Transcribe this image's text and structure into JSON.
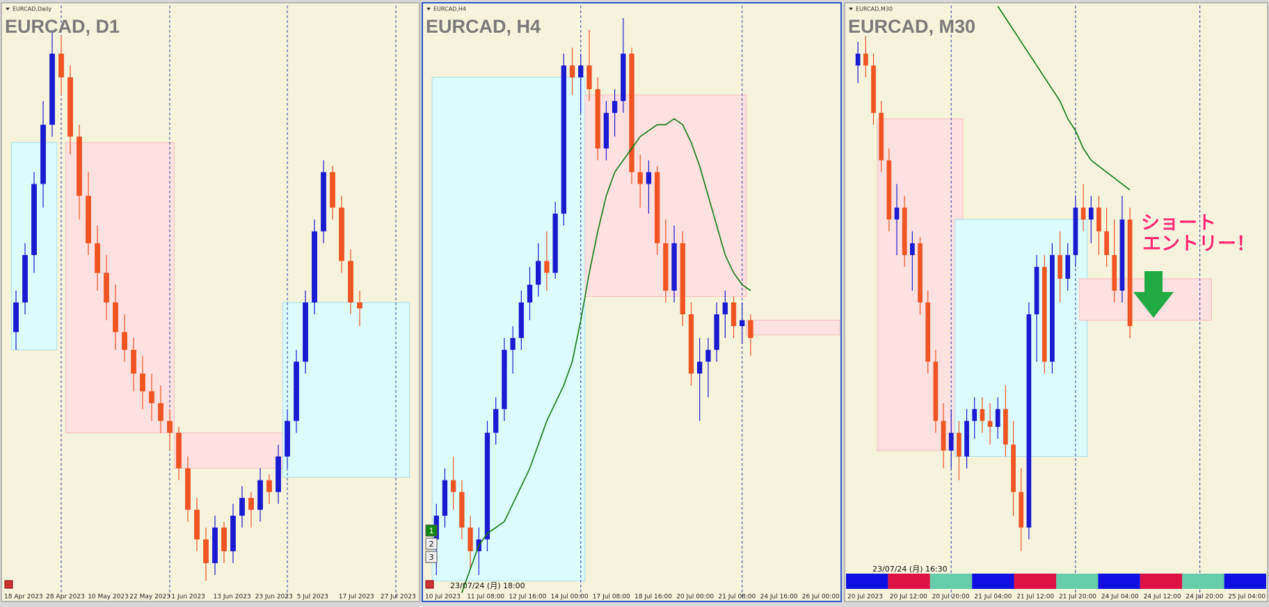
{
  "panels": [
    {
      "label": "EURCAD,Daily",
      "title": "EURCAD, D1",
      "xlim": [
        -1,
        44
      ],
      "ylim": [
        0,
        100
      ],
      "x_labels": [
        "18 Apr 2023",
        "28 Apr 2023",
        "10 May 2023",
        "22 May 2023",
        "1 Jun 2023",
        "13 Jun 2023",
        "23 Jun 2023",
        "5 Jul 2023",
        "17 Jul 2023",
        "27 Jul 2023"
      ],
      "vlines": [
        5,
        17,
        30,
        42
      ],
      "zones": [
        {
          "start": 0,
          "end": 4,
          "top": 77,
          "bottom": 42,
          "color": "#dcfcfc"
        },
        {
          "start": 6,
          "end": 17,
          "top": 77,
          "bottom": 28,
          "color": "#fde0e0"
        },
        {
          "start": 18,
          "end": 29,
          "top": 28,
          "bottom": 22,
          "color": "#fde0e0"
        },
        {
          "start": 30,
          "end": 43,
          "top": 50,
          "bottom": 20.5,
          "color": "#dcfcfc"
        }
      ],
      "candles": [
        [
          45,
          52,
          42,
          50
        ],
        [
          50,
          60,
          48,
          58
        ],
        [
          58,
          72,
          55,
          70
        ],
        [
          70,
          84,
          66,
          80
        ],
        [
          80,
          96,
          78,
          92
        ],
        [
          92,
          95,
          85,
          88
        ],
        [
          88,
          90,
          75,
          78
        ],
        [
          78,
          80,
          64,
          68
        ],
        [
          68,
          72,
          58,
          60
        ],
        [
          60,
          63,
          52,
          55
        ],
        [
          55,
          58,
          47,
          50
        ],
        [
          50,
          53,
          42,
          45
        ],
        [
          45,
          48,
          40,
          42
        ],
        [
          42,
          44,
          35,
          38
        ],
        [
          38,
          41,
          32,
          35
        ],
        [
          35,
          38,
          30,
          33
        ],
        [
          33,
          36,
          28,
          30
        ],
        [
          30,
          32,
          25,
          28
        ],
        [
          28,
          29,
          20,
          22
        ],
        [
          22,
          24,
          13,
          15
        ],
        [
          15,
          17,
          8,
          10
        ],
        [
          10,
          12,
          3,
          6
        ],
        [
          6,
          14,
          4,
          12
        ],
        [
          12,
          13,
          6,
          8
        ],
        [
          8,
          16,
          6,
          14
        ],
        [
          14,
          19,
          12,
          17
        ],
        [
          17,
          18,
          12,
          15
        ],
        [
          15,
          22,
          13,
          20
        ],
        [
          20,
          21,
          16,
          18
        ],
        [
          18,
          26,
          16,
          24
        ],
        [
          24,
          32,
          22,
          30
        ],
        [
          30,
          42,
          28,
          40
        ],
        [
          40,
          52,
          38,
          50
        ],
        [
          50,
          64,
          48,
          62
        ],
        [
          62,
          74,
          60,
          72
        ],
        [
          72,
          73,
          64,
          66
        ],
        [
          66,
          68,
          55,
          57
        ],
        [
          57,
          59,
          48,
          50
        ],
        [
          50,
          52,
          46,
          49
        ]
      ]
    },
    {
      "label": "EURCAD,H4",
      "title": "EURCAD, H4",
      "xlim": [
        -1,
        47
      ],
      "ylim": [
        0,
        100
      ],
      "x_labels": [
        "10 Jul 2023",
        "11 Jul 08:00",
        "12 Jul 16:00",
        "14 Jul 00:00",
        "17 Jul 08:00",
        "18 Jul 16:00",
        "20 Jul 00:00",
        "21 Jul 08:00",
        "24 Jul 16:00",
        "26 Jul 00:00"
      ],
      "vlines": [
        17,
        36
      ],
      "time": "23/07/24 (月) 18:00",
      "buttons": [
        "1",
        "2",
        "3"
      ],
      "zones": [
        {
          "start": 0,
          "end": 17,
          "top": 88,
          "bottom": 3,
          "color": "#dcfcfc"
        },
        {
          "start": 18,
          "end": 36,
          "top": 85,
          "bottom": 51,
          "color": "#fde0e0"
        },
        {
          "start": 37,
          "end": 47,
          "top": 47,
          "bottom": 44.5,
          "color": "#fde0e0"
        }
      ],
      "candles": [
        [
          10,
          16,
          4,
          14
        ],
        [
          14,
          22,
          12,
          20
        ],
        [
          20,
          24,
          15,
          18
        ],
        [
          18,
          20,
          10,
          12
        ],
        [
          12,
          14,
          5,
          8
        ],
        [
          8,
          12,
          4,
          10
        ],
        [
          10,
          30,
          8,
          28
        ],
        [
          28,
          34,
          26,
          32
        ],
        [
          32,
          44,
          30,
          42
        ],
        [
          42,
          46,
          38,
          44
        ],
        [
          44,
          52,
          42,
          50
        ],
        [
          50,
          56,
          47,
          53
        ],
        [
          53,
          60,
          51,
          57
        ],
        [
          57,
          62,
          52,
          55
        ],
        [
          55,
          67,
          54,
          65
        ],
        [
          65,
          92,
          63,
          90
        ],
        [
          90,
          93,
          85,
          88
        ],
        [
          88,
          92,
          82,
          90
        ],
        [
          90,
          96,
          84,
          86
        ],
        [
          86,
          88,
          74,
          76
        ],
        [
          76,
          84,
          74,
          82
        ],
        [
          82,
          86,
          78,
          84
        ],
        [
          84,
          98,
          82,
          92
        ],
        [
          92,
          93,
          70,
          72
        ],
        [
          72,
          75,
          66,
          70
        ],
        [
          70,
          74,
          65,
          72
        ],
        [
          72,
          73,
          58,
          60
        ],
        [
          60,
          64,
          50,
          52
        ],
        [
          52,
          63,
          50,
          60
        ],
        [
          60,
          62,
          46,
          48
        ],
        [
          48,
          50,
          36,
          38
        ],
        [
          38,
          44,
          30,
          40
        ],
        [
          40,
          44,
          34,
          42
        ],
        [
          42,
          50,
          40,
          48
        ],
        [
          48,
          52,
          44,
          50
        ],
        [
          50,
          51,
          44,
          46
        ],
        [
          46,
          50,
          43,
          47
        ],
        [
          47,
          48,
          41,
          44
        ]
      ],
      "ma": [
        null,
        null,
        null,
        1,
        5,
        9,
        11,
        12,
        13,
        16,
        19,
        22,
        26,
        30,
        33,
        36,
        40,
        47,
        55,
        62,
        68,
        72,
        74,
        76,
        78,
        79,
        80,
        80,
        81,
        80,
        77,
        73,
        68,
        63,
        58,
        55,
        53,
        52
      ]
    },
    {
      "label": "EURCAD,M30",
      "title": "EURCAD, M30",
      "xlim": [
        -1,
        52
      ],
      "ylim": [
        0,
        100
      ],
      "x_labels": [
        "20 Jul 2023",
        "20 Jul 12:00",
        "20 Jul 20:00",
        "21 Jul 04:00",
        "21 Jul 12:00",
        "21 Jul 20:00",
        "24 Jul 04:00",
        "24 Jul 12:00",
        "24 Jul 20:00",
        "25 Jul 04:00"
      ],
      "vlines": [
        12,
        28,
        44
      ],
      "time": "23/07/24 (月) 16:30",
      "annotation": [
        "ショート",
        "エントリー！"
      ],
      "zones": [
        {
          "start": 3,
          "end": 13,
          "top": 81,
          "bottom": 25,
          "color": "#fde0e0"
        },
        {
          "start": 13,
          "end": 29,
          "top": 64,
          "bottom": 24,
          "color": "#dcfcfc"
        },
        {
          "start": 29,
          "end": 45,
          "top": 54,
          "bottom": 47,
          "color": "#fde0e0"
        }
      ],
      "candles": [
        [
          90,
          94,
          87,
          92
        ],
        [
          92,
          95,
          88,
          90
        ],
        [
          90,
          92,
          80,
          82
        ],
        [
          82,
          84,
          72,
          74
        ],
        [
          74,
          76,
          62,
          64
        ],
        [
          64,
          70,
          58,
          66
        ],
        [
          66,
          68,
          56,
          58
        ],
        [
          58,
          62,
          52,
          60
        ],
        [
          60,
          61,
          48,
          50
        ],
        [
          50,
          52,
          38,
          40
        ],
        [
          40,
          42,
          28,
          30
        ],
        [
          30,
          33,
          22,
          25
        ],
        [
          25,
          32,
          22,
          28
        ],
        [
          28,
          30,
          20,
          24
        ],
        [
          24,
          32,
          22,
          30
        ],
        [
          30,
          34,
          27,
          32
        ],
        [
          32,
          34,
          28,
          30
        ],
        [
          30,
          33,
          26,
          29
        ],
        [
          29,
          34,
          27,
          32
        ],
        [
          32,
          36,
          24,
          26
        ],
        [
          26,
          30,
          14,
          18
        ],
        [
          18,
          22,
          8,
          12
        ],
        [
          12,
          50,
          10,
          48
        ],
        [
          48,
          58,
          40,
          56
        ],
        [
          56,
          58,
          38,
          40
        ],
        [
          40,
          60,
          38,
          58
        ],
        [
          58,
          62,
          50,
          54
        ],
        [
          54,
          60,
          52,
          58
        ],
        [
          58,
          68,
          56,
          66
        ],
        [
          66,
          70,
          62,
          64
        ],
        [
          64,
          68,
          60,
          66
        ],
        [
          66,
          68,
          58,
          62
        ],
        [
          62,
          66,
          56,
          58
        ],
        [
          58,
          64,
          50,
          52
        ],
        [
          52,
          68,
          50,
          64
        ],
        [
          64,
          66,
          44,
          46
        ]
      ],
      "ma": [
        null,
        null,
        null,
        null,
        null,
        null,
        null,
        null,
        null,
        null,
        null,
        null,
        null,
        null,
        null,
        null,
        null,
        null,
        100,
        98,
        96,
        94,
        92,
        90,
        88,
        86,
        84,
        81,
        79,
        76,
        74,
        73,
        72,
        71,
        70,
        69
      ]
    }
  ]
}
